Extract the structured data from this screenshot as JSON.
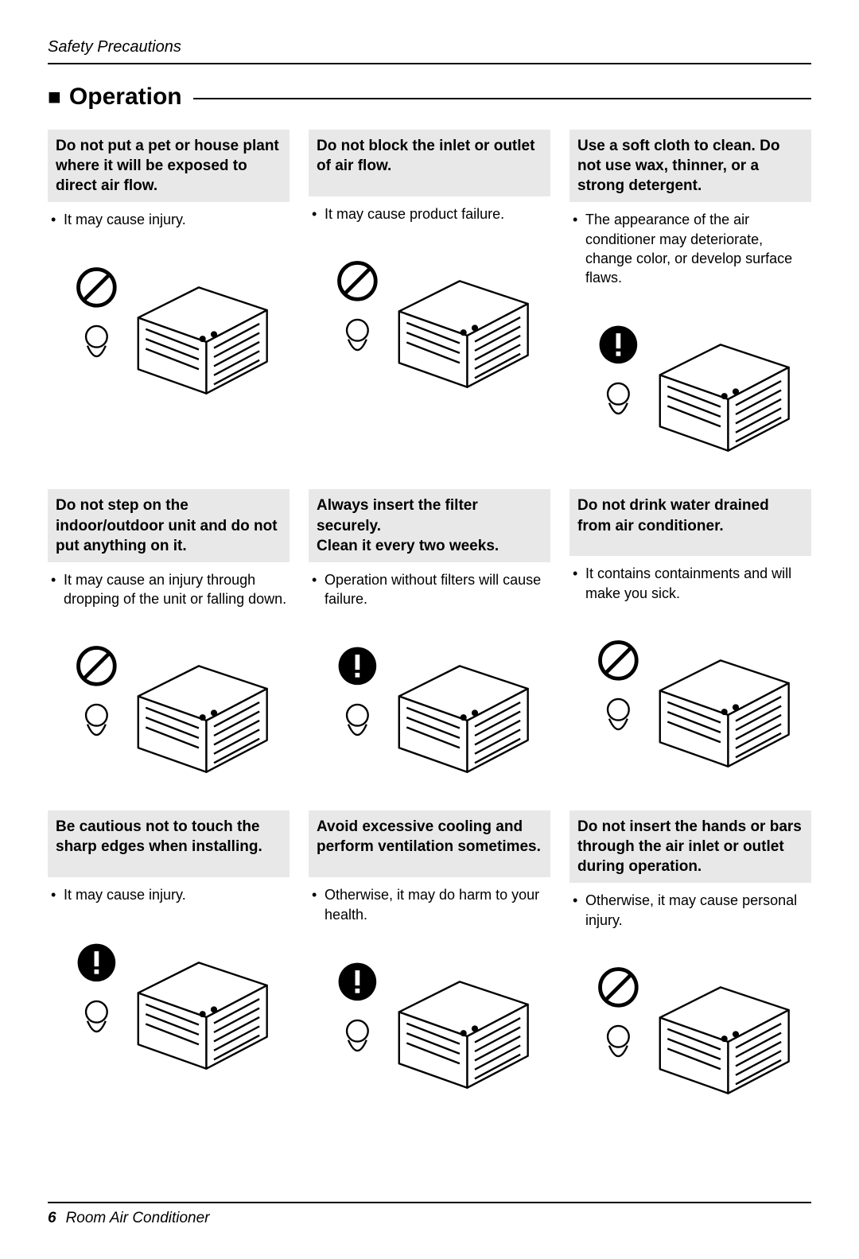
{
  "header": {
    "label": "Safety Precautions"
  },
  "section": {
    "bullet": "■",
    "title": "Operation"
  },
  "footer": {
    "page": "6",
    "title": "Room Air Conditioner"
  },
  "colors": {
    "heading_bg": "#e8e8e8",
    "text": "#000000",
    "rule": "#000000",
    "page_bg": "#ffffff"
  },
  "items": [
    {
      "heading": "Do not put a pet or house plant where it will be exposed to direct air flow.",
      "bullets": [
        "It may cause injury."
      ],
      "icon": "prohibit"
    },
    {
      "heading": "Do not block the inlet or outlet of  air flow.",
      "bullets": [
        "It may cause product failure."
      ],
      "icon": "prohibit"
    },
    {
      "heading": "Use a soft cloth to clean. Do not use wax, thinner, or a strong detergent.",
      "bullets": [
        "The appearance of the air conditioner may deteriorate, change color, or develop surface flaws."
      ],
      "icon": "warn"
    },
    {
      "heading": "Do not step on the indoor/outdoor unit and do not put anything on it.",
      "bullets": [
        "It may cause an injury through dropping of the unit or falling down."
      ],
      "icon": "prohibit"
    },
    {
      "heading": "Always insert the filter securely.\nClean it every two weeks.",
      "bullets": [
        "Operation without filters will cause failure."
      ],
      "icon": "warn"
    },
    {
      "heading": "Do not drink water drained from air conditioner.",
      "bullets": [
        "It contains containments and will make you sick."
      ],
      "icon": "prohibit"
    },
    {
      "heading": "Be cautious not to touch the sharp edges when installing.",
      "bullets": [
        "It may cause injury."
      ],
      "icon": "warn"
    },
    {
      "heading": "Avoid excessive cooling and perform ventilation sometimes.",
      "bullets": [
        "Otherwise, it may do harm to your health."
      ],
      "icon": "warn"
    },
    {
      "heading": "Do not insert the hands or bars through the air inlet or outlet during operation.",
      "bullets": [
        "Otherwise, it may cause personal injury."
      ],
      "icon": "prohibit"
    }
  ]
}
